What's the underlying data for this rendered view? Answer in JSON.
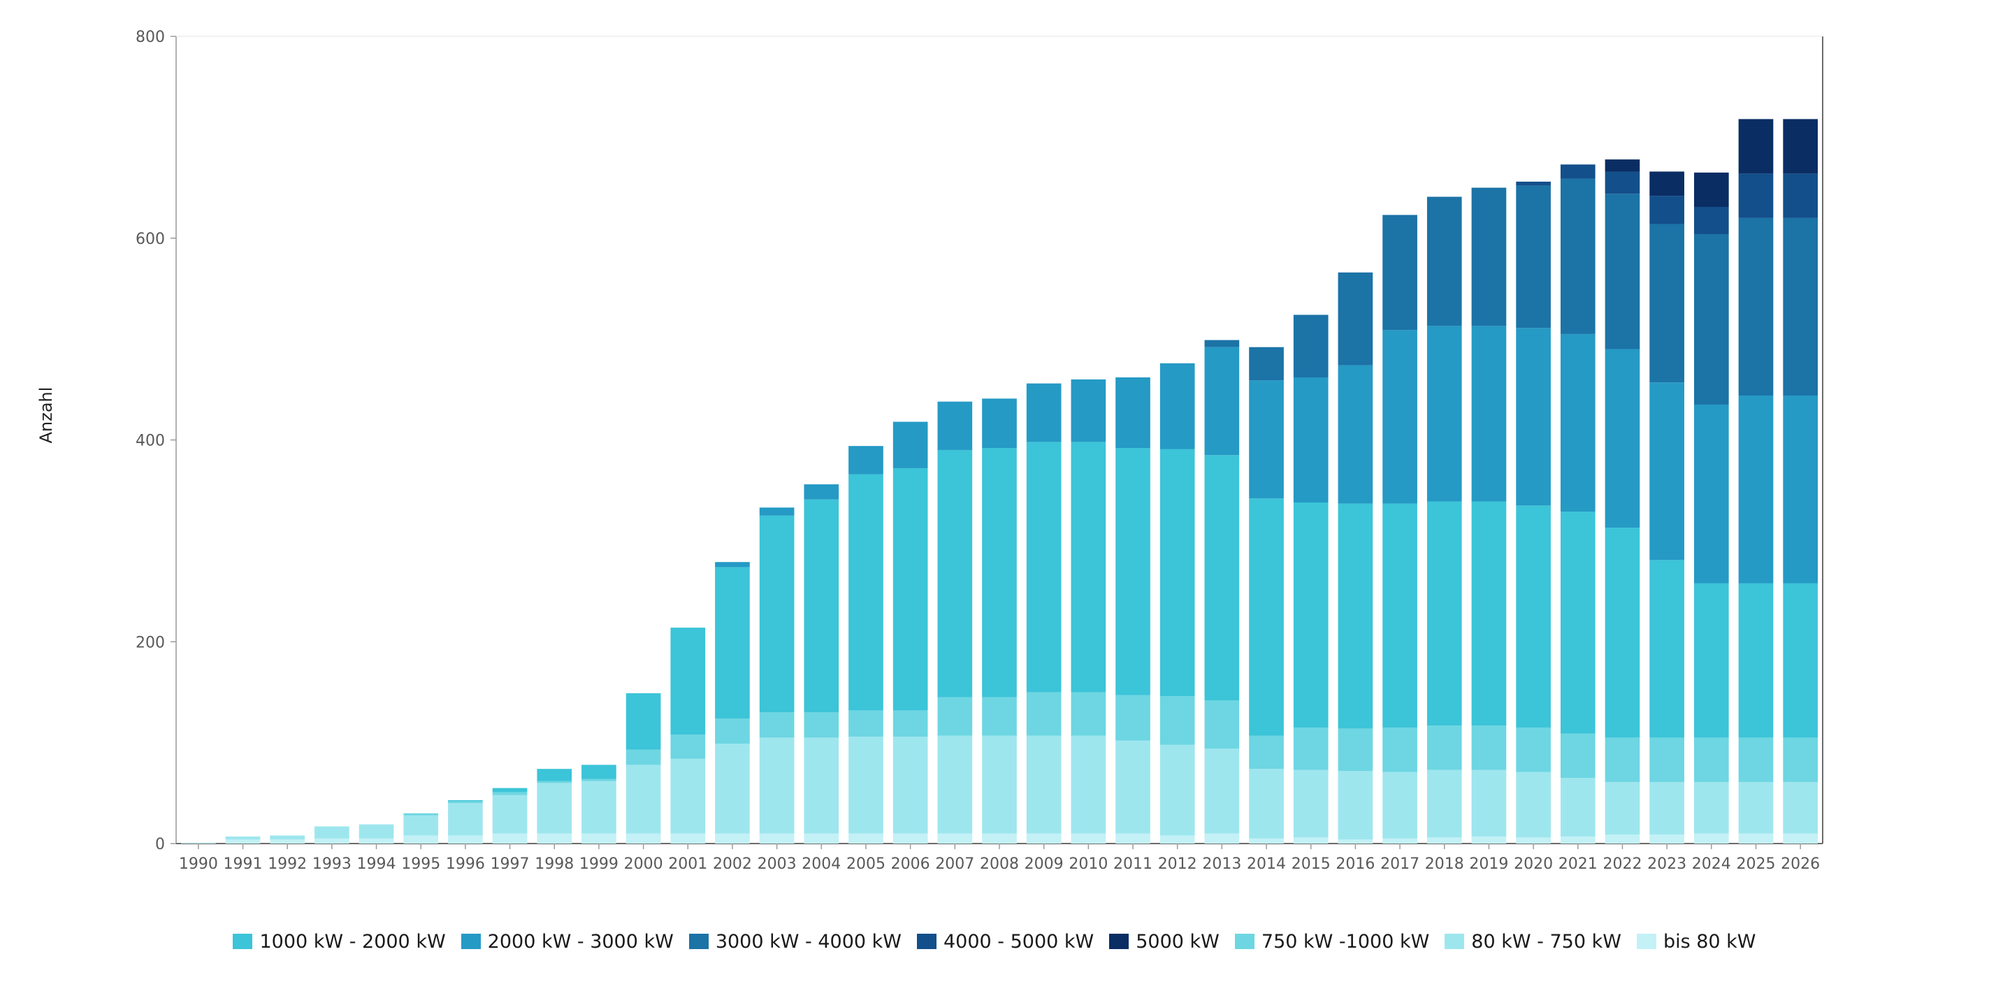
{
  "chart_data": {
    "type": "bar",
    "stacked": true,
    "ylabel": "Anzahl",
    "ylim": [
      0,
      800
    ],
    "yticks": [
      0,
      200,
      400,
      600,
      800
    ],
    "grid": false,
    "legend_position": "bottom",
    "categories": [
      "1990",
      "1991",
      "1992",
      "1993",
      "1994",
      "1995",
      "1996",
      "1997",
      "1998",
      "1999",
      "2000",
      "2001",
      "2002",
      "2003",
      "2004",
      "2005",
      "2006",
      "2007",
      "2008",
      "2009",
      "2010",
      "2011",
      "2012",
      "2013",
      "2014",
      "2015",
      "2016",
      "2017",
      "2018",
      "2019",
      "2020",
      "2021",
      "2022",
      "2023",
      "2024",
      "2025",
      "2026"
    ],
    "series": [
      {
        "name": "bis 80 kW",
        "color": "#c3f1f6",
        "values": [
          1,
          4,
          4,
          5,
          5,
          8,
          8,
          10,
          10,
          10,
          10,
          10,
          10,
          10,
          10,
          10,
          10,
          10,
          10,
          10,
          10,
          10,
          8,
          10,
          5,
          6,
          4,
          5,
          6,
          7,
          6,
          7,
          9,
          9,
          10,
          10,
          10
        ]
      },
      {
        "name": "80 kW - 750 kW",
        "color": "#9ee6ee",
        "values": [
          0,
          3,
          4,
          12,
          14,
          20,
          32,
          38,
          50,
          52,
          68,
          74,
          89,
          95,
          95,
          96,
          96,
          97,
          97,
          97,
          97,
          92,
          90,
          84,
          69,
          67,
          68,
          66,
          67,
          66,
          65,
          58,
          52,
          52,
          51,
          51,
          51
        ]
      },
      {
        "name": "750 kW -1000 kW",
        "color": "#6dd6e2",
        "values": [
          0,
          0,
          0,
          0,
          0,
          2,
          2,
          3,
          2,
          2,
          15,
          24,
          25,
          25,
          25,
          26,
          26,
          38,
          38,
          43,
          43,
          45,
          48,
          48,
          33,
          42,
          42,
          44,
          44,
          44,
          44,
          44,
          44,
          44,
          44,
          44,
          44
        ]
      },
      {
        "name": "1000 kW - 2000 kW",
        "color": "#3cc4d8",
        "values": [
          0,
          0,
          0,
          0,
          0,
          0,
          1,
          4,
          12,
          14,
          56,
          106,
          150,
          195,
          211,
          234,
          240,
          245,
          247,
          248,
          248,
          245,
          245,
          243,
          235,
          223,
          223,
          222,
          222,
          222,
          220,
          220,
          208,
          176,
          153,
          153,
          153
        ]
      },
      {
        "name": "2000 kW - 3000 kW",
        "color": "#259ac5",
        "values": [
          0,
          0,
          0,
          0,
          0,
          0,
          0,
          0,
          0,
          0,
          0,
          0,
          5,
          8,
          15,
          28,
          46,
          48,
          49,
          58,
          62,
          70,
          85,
          107,
          117,
          124,
          137,
          172,
          174,
          174,
          176,
          176,
          177,
          176,
          177,
          186,
          186
        ]
      },
      {
        "name": "3000 kW - 4000 kW",
        "color": "#1b73a6",
        "values": [
          0,
          0,
          0,
          0,
          0,
          0,
          0,
          0,
          0,
          0,
          0,
          0,
          0,
          0,
          0,
          0,
          0,
          0,
          0,
          0,
          0,
          0,
          0,
          7,
          33,
          62,
          92,
          114,
          128,
          137,
          141,
          154,
          154,
          157,
          169,
          176,
          176
        ]
      },
      {
        "name": "4000 - 5000 kW",
        "color": "#134f8a",
        "values": [
          0,
          0,
          0,
          0,
          0,
          0,
          0,
          0,
          0,
          0,
          0,
          0,
          0,
          0,
          0,
          0,
          0,
          0,
          0,
          0,
          0,
          0,
          0,
          0,
          0,
          0,
          0,
          0,
          0,
          0,
          4,
          14,
          22,
          28,
          27,
          44,
          44
        ]
      },
      {
        "name": "5000 kW",
        "color": "#0a2d63",
        "values": [
          0,
          0,
          0,
          0,
          0,
          0,
          0,
          0,
          0,
          0,
          0,
          0,
          0,
          0,
          0,
          0,
          0,
          0,
          0,
          0,
          0,
          0,
          0,
          0,
          0,
          0,
          0,
          0,
          0,
          0,
          0,
          0,
          12,
          24,
          34,
          54,
          54
        ]
      }
    ],
    "legend_order": [
      "1000 kW - 2000 kW",
      "2000 kW - 3000 kW",
      "3000 kW - 4000 kW",
      "4000 - 5000 kW",
      "5000 kW",
      "750 kW -1000 kW",
      "80 kW - 750 kW",
      "bis 80 kW"
    ]
  }
}
